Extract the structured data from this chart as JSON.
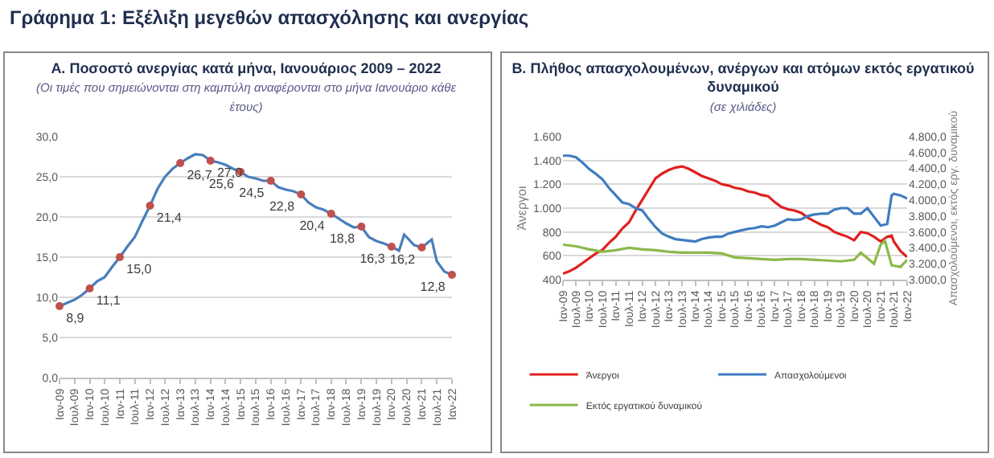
{
  "chart_data": [
    {
      "type": "other",
      "title": "Γράφημα 1: Εξέλιξη μεγεθών απασχόλησης και ανεργίας"
    },
    {
      "type": "line",
      "title": "Α. Ποσοστό ανεργίας κατά μήνα, Ιανουάριος 2009 – 2022",
      "subtitle": "(Οι τιμές που σημειώνονται στη καμπύλη αναφέρονται στο μήνα Ιανουάριο κάθε έτους)",
      "xlim": [
        "2009-01",
        "2022-01"
      ],
      "xticks": [
        {
          "value": "2009-01",
          "label": "Ιαν-09"
        },
        {
          "value": "2009-07",
          "label": "Ιουλ-09"
        },
        {
          "value": "2010-01",
          "label": "Ιαν-10"
        },
        {
          "value": "2010-07",
          "label": "Ιουλ-10"
        },
        {
          "value": "2011-01",
          "label": "Ιαν-11"
        },
        {
          "value": "2011-07",
          "label": "Ιουλ-11"
        },
        {
          "value": "2012-01",
          "label": "Ιαν-12"
        },
        {
          "value": "2012-07",
          "label": "Ιουλ-12"
        },
        {
          "value": "2013-01",
          "label": "Ιαν-13"
        },
        {
          "value": "2013-07",
          "label": "Ιουλ-13"
        },
        {
          "value": "2014-01",
          "label": "Ιαν-14"
        },
        {
          "value": "2014-07",
          "label": "Ιουλ-14"
        },
        {
          "value": "2015-01",
          "label": "Ιαν-15"
        },
        {
          "value": "2015-07",
          "label": "Ιουλ-15"
        },
        {
          "value": "2016-01",
          "label": "Ιαν-16"
        },
        {
          "value": "2016-07",
          "label": "Ιουλ-16"
        },
        {
          "value": "2017-01",
          "label": "Ιαν-17"
        },
        {
          "value": "2017-07",
          "label": "Ιουλ-17"
        },
        {
          "value": "2018-01",
          "label": "Ιαν-18"
        },
        {
          "value": "2018-07",
          "label": "Ιουλ-18"
        },
        {
          "value": "2019-01",
          "label": "Ιαν-19"
        },
        {
          "value": "2019-07",
          "label": "Ιουλ-19"
        },
        {
          "value": "2020-01",
          "label": "Ιαν-20"
        },
        {
          "value": "2020-07",
          "label": "Ιουλ-20"
        },
        {
          "value": "2021-01",
          "label": "Ιαν-21"
        },
        {
          "value": "2021-07",
          "label": "Ιουλ-21"
        },
        {
          "value": "2022-01",
          "label": "Ιαν-22"
        }
      ],
      "ylim": [
        0,
        30
      ],
      "yticks": [
        {
          "value": 0,
          "label": "0,0"
        },
        {
          "value": 5,
          "label": "5,0"
        },
        {
          "value": 10,
          "label": "10,0"
        },
        {
          "value": 15,
          "label": "15,0"
        },
        {
          "value": 20,
          "label": "20,0"
        },
        {
          "value": 25,
          "label": "25,0"
        },
        {
          "value": 30,
          "label": "30,0"
        }
      ],
      "grid": "y",
      "legend": false,
      "series": [
        {
          "color": "#4a7ebb",
          "x": [
            "2009-01",
            "2009-04",
            "2009-07",
            "2009-10",
            "2010-01",
            "2010-04",
            "2010-07",
            "2010-10",
            "2011-01",
            "2011-04",
            "2011-07",
            "2011-10",
            "2012-01",
            "2012-04",
            "2012-07",
            "2012-10",
            "2013-01",
            "2013-04",
            "2013-07",
            "2013-10",
            "2014-01",
            "2014-04",
            "2014-07",
            "2014-10",
            "2015-01",
            "2015-04",
            "2015-07",
            "2015-10",
            "2016-01",
            "2016-04",
            "2016-07",
            "2016-10",
            "2017-01",
            "2017-04",
            "2017-07",
            "2017-10",
            "2018-01",
            "2018-04",
            "2018-07",
            "2018-10",
            "2019-01",
            "2019-04",
            "2019-07",
            "2019-10",
            "2020-01",
            "2020-04",
            "2020-06",
            "2020-10",
            "2021-01",
            "2021-05",
            "2021-07",
            "2021-10",
            "2022-01"
          ],
          "values": [
            8.9,
            9.3,
            9.7,
            10.3,
            11.1,
            12.0,
            12.5,
            13.8,
            15.0,
            16.3,
            17.5,
            19.5,
            21.4,
            23.5,
            25.0,
            26.0,
            26.7,
            27.3,
            27.8,
            27.7,
            27.0,
            26.8,
            26.5,
            26.0,
            25.6,
            25.0,
            24.8,
            24.5,
            24.5,
            23.7,
            23.4,
            23.2,
            22.8,
            21.8,
            21.2,
            20.9,
            20.4,
            19.8,
            19.2,
            18.7,
            18.8,
            17.5,
            17.0,
            16.7,
            16.3,
            15.8,
            17.8,
            16.5,
            16.2,
            17.2,
            14.5,
            13.2,
            12.8
          ]
        },
        {
          "type": "scatter",
          "marker": "circle",
          "color": "#c0504d",
          "x": [
            "2009-01",
            "2010-01",
            "2011-01",
            "2012-01",
            "2013-01",
            "2014-01",
            "2015-01",
            "2016-01",
            "2017-01",
            "2018-01",
            "2019-01",
            "2020-01",
            "2021-01",
            "2022-01"
          ],
          "values": [
            8.9,
            11.1,
            15.0,
            21.4,
            26.7,
            27.0,
            25.6,
            24.5,
            22.8,
            20.4,
            18.8,
            16.3,
            16.2,
            12.8
          ],
          "value_labels": [
            "8,9",
            "11,1",
            "15,0",
            "21,4",
            "26,7",
            "27,0",
            "25,6",
            "24,5",
            "22,8",
            "20,4",
            "18,8",
            "16,3",
            "16,2",
            "12,8"
          ]
        }
      ]
    },
    {
      "type": "line",
      "title": "Β. Πλήθος απασχολουμένων, ανέργων και ατόμων εκτός εργατικού δυναμικού",
      "subtitle": "(σε χιλιάδες)",
      "ylabel": "Άνεργοι",
      "y2label": "Απασχολούμενοι, εκτός εργ. δυναμικού",
      "xlim": [
        "2009-01",
        "2022-01"
      ],
      "xticks": [
        {
          "value": "2009-01",
          "label": "Ιαν-09"
        },
        {
          "value": "2009-07",
          "label": "Ιουλ-09"
        },
        {
          "value": "2010-01",
          "label": "Ιαν-10"
        },
        {
          "value": "2010-07",
          "label": "Ιουλ-10"
        },
        {
          "value": "2011-01",
          "label": "Ιαν-11"
        },
        {
          "value": "2011-07",
          "label": "Ιουλ-11"
        },
        {
          "value": "2012-01",
          "label": "Ιαν-12"
        },
        {
          "value": "2012-07",
          "label": "Ιουλ-12"
        },
        {
          "value": "2013-01",
          "label": "Ιαν-13"
        },
        {
          "value": "2013-07",
          "label": "Ιουλ-13"
        },
        {
          "value": "2014-01",
          "label": "Ιαν-14"
        },
        {
          "value": "2014-07",
          "label": "Ιουλ-14"
        },
        {
          "value": "2015-01",
          "label": "Ιαν-15"
        },
        {
          "value": "2015-07",
          "label": "Ιουλ-15"
        },
        {
          "value": "2016-01",
          "label": "Ιαν-16"
        },
        {
          "value": "2016-07",
          "label": "Ιουλ-16"
        },
        {
          "value": "2017-01",
          "label": "Ιαν-17"
        },
        {
          "value": "2017-07",
          "label": "Ιουλ-17"
        },
        {
          "value": "2018-01",
          "label": "Ιαν-18"
        },
        {
          "value": "2018-07",
          "label": "Ιουλ-18"
        },
        {
          "value": "2019-01",
          "label": "Ιαν-19"
        },
        {
          "value": "2019-07",
          "label": "Ιουλ-19"
        },
        {
          "value": "2020-01",
          "label": "Ιαν-20"
        },
        {
          "value": "2020-07",
          "label": "Ιουλ-20"
        },
        {
          "value": "2021-01",
          "label": "Ιαν-21"
        },
        {
          "value": "2021-07",
          "label": "Ιουλ-21"
        },
        {
          "value": "2022-01",
          "label": "Ιαν-22"
        }
      ],
      "ylim": [
        400,
        1600
      ],
      "yticks": [
        {
          "value": 400,
          "label": "400"
        },
        {
          "value": 600,
          "label": "600"
        },
        {
          "value": 800,
          "label": "800"
        },
        {
          "value": 1000,
          "label": "1.000"
        },
        {
          "value": 1200,
          "label": "1.200"
        },
        {
          "value": 1400,
          "label": "1.400"
        },
        {
          "value": 1600,
          "label": "1.600"
        }
      ],
      "y2lim": [
        3000,
        4800
      ],
      "y2ticks": [
        {
          "value": 3000,
          "label": "3.000,0"
        },
        {
          "value": 3200,
          "label": "3.200,0"
        },
        {
          "value": 3400,
          "label": "3.400,0"
        },
        {
          "value": 3600,
          "label": "3.600,0"
        },
        {
          "value": 3800,
          "label": "3.800,0"
        },
        {
          "value": 4000,
          "label": "4.000,0"
        },
        {
          "value": 4200,
          "label": "4.200,0"
        },
        {
          "value": 4400,
          "label": "4.400,0"
        },
        {
          "value": 4600,
          "label": "4.600,0"
        },
        {
          "value": 4800,
          "label": "4.800,0"
        }
      ],
      "grid": "y",
      "legend": "bottom",
      "series": [
        {
          "name": "Άνεργοι",
          "color": "#e0201e",
          "x": [
            "2009-01",
            "2009-04",
            "2009-07",
            "2009-10",
            "2010-01",
            "2010-04",
            "2010-07",
            "2010-10",
            "2011-01",
            "2011-04",
            "2011-07",
            "2011-10",
            "2012-01",
            "2012-04",
            "2012-07",
            "2012-10",
            "2013-01",
            "2013-04",
            "2013-07",
            "2013-10",
            "2014-01",
            "2014-04",
            "2014-07",
            "2014-10",
            "2015-01",
            "2015-04",
            "2015-07",
            "2015-10",
            "2016-01",
            "2016-04",
            "2016-07",
            "2016-10",
            "2017-01",
            "2017-04",
            "2017-07",
            "2017-10",
            "2018-01",
            "2018-04",
            "2018-07",
            "2018-10",
            "2019-01",
            "2019-04",
            "2019-07",
            "2019-10",
            "2020-01",
            "2020-04",
            "2020-07",
            "2020-10",
            "2021-01",
            "2021-04",
            "2021-06",
            "2021-07",
            "2021-10",
            "2022-01"
          ],
          "values": [
            450,
            470,
            500,
            540,
            580,
            620,
            650,
            710,
            760,
            830,
            880,
            980,
            1070,
            1160,
            1250,
            1290,
            1320,
            1340,
            1350,
            1330,
            1300,
            1270,
            1250,
            1230,
            1200,
            1190,
            1170,
            1160,
            1140,
            1130,
            1110,
            1100,
            1050,
            1010,
            990,
            980,
            960,
            920,
            890,
            860,
            840,
            800,
            780,
            760,
            730,
            800,
            790,
            760,
            720,
            760,
            770,
            720,
            640,
            590
          ]
        },
        {
          "name": "Απασχολούμενοι",
          "axis": "y2",
          "color": "#3e7cc0",
          "x": [
            "2009-01",
            "2009-04",
            "2009-07",
            "2009-10",
            "2010-01",
            "2010-04",
            "2010-07",
            "2010-10",
            "2011-01",
            "2011-04",
            "2011-07",
            "2011-10",
            "2012-01",
            "2012-04",
            "2012-07",
            "2012-10",
            "2013-01",
            "2013-04",
            "2013-07",
            "2013-10",
            "2014-01",
            "2014-04",
            "2014-07",
            "2014-10",
            "2015-01",
            "2015-04",
            "2015-07",
            "2015-10",
            "2016-01",
            "2016-04",
            "2016-07",
            "2016-10",
            "2017-01",
            "2017-04",
            "2017-07",
            "2017-10",
            "2018-01",
            "2018-04",
            "2018-07",
            "2018-10",
            "2019-01",
            "2019-04",
            "2019-07",
            "2019-10",
            "2020-01",
            "2020-04",
            "2020-07",
            "2020-10",
            "2021-01",
            "2021-04",
            "2021-06",
            "2021-07",
            "2021-10",
            "2022-01"
          ],
          "values": [
            4560,
            4560,
            4540,
            4470,
            4390,
            4330,
            4260,
            4150,
            4060,
            3970,
            3950,
            3900,
            3870,
            3760,
            3660,
            3580,
            3540,
            3510,
            3500,
            3490,
            3480,
            3510,
            3530,
            3540,
            3540,
            3580,
            3600,
            3620,
            3640,
            3650,
            3670,
            3660,
            3680,
            3720,
            3760,
            3750,
            3760,
            3800,
            3820,
            3830,
            3830,
            3880,
            3900,
            3900,
            3830,
            3830,
            3900,
            3790,
            3680,
            3700,
            4060,
            4080,
            4060,
            4020
          ]
        },
        {
          "name": "Εκτός εργατικού δυναμικού",
          "axis": "y2",
          "color": "#8cb84a",
          "x": [
            "2009-01",
            "2009-07",
            "2010-01",
            "2010-07",
            "2011-01",
            "2011-07",
            "2012-01",
            "2012-07",
            "2013-01",
            "2013-07",
            "2014-01",
            "2014-07",
            "2015-01",
            "2015-07",
            "2016-01",
            "2016-07",
            "2017-01",
            "2017-07",
            "2018-01",
            "2018-07",
            "2019-01",
            "2019-07",
            "2020-01",
            "2020-04",
            "2020-07",
            "2020-10",
            "2021-01",
            "2021-03",
            "2021-06",
            "2021-10",
            "2022-01"
          ],
          "values": [
            3440,
            3420,
            3380,
            3350,
            3370,
            3400,
            3380,
            3370,
            3350,
            3340,
            3340,
            3340,
            3330,
            3280,
            3270,
            3260,
            3250,
            3260,
            3260,
            3250,
            3240,
            3230,
            3250,
            3340,
            3270,
            3200,
            3440,
            3490,
            3180,
            3160,
            3250
          ]
        }
      ]
    }
  ]
}
